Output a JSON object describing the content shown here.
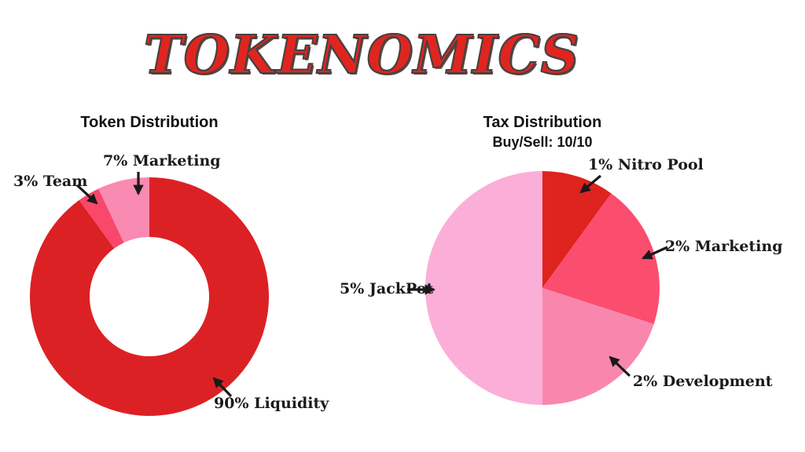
{
  "header": {
    "title": "TOKENOMICS"
  },
  "theme": {
    "background": "#ffffff",
    "title_fill": "#e0251f",
    "title_outline": "#4a4040",
    "text_color": "#111111",
    "arrow_color": "#1a1a1a"
  },
  "chart_data": [
    {
      "type": "pie",
      "variant": "donut",
      "title": "Token Distribution",
      "legend_position": "none",
      "label_style": "callout-arrows",
      "start_angle_deg": 0,
      "direction": "clockwise",
      "slices": [
        {
          "category": "Liquidity",
          "label": "90% Liquidity",
          "value_pct": 90,
          "color": "#dc2125"
        },
        {
          "category": "Team",
          "label": "3% Team",
          "value_pct": 3,
          "color": "#f9486c"
        },
        {
          "category": "Marketing",
          "label": "7% Marketing",
          "value_pct": 7,
          "color": "#f98ab2"
        }
      ]
    },
    {
      "type": "pie",
      "variant": "pie",
      "title": "Tax Distribution",
      "subtitle": "Buy/Sell: 10/10",
      "legend_position": "none",
      "label_style": "callout-arrows",
      "start_angle_deg": 0,
      "direction": "clockwise",
      "slices": [
        {
          "category": "Nitro Pool",
          "label": "1% Nitro Pool",
          "value_pct": 1,
          "color": "#df231f"
        },
        {
          "category": "Marketing",
          "label": "2% Marketing",
          "value_pct": 2,
          "color": "#fb4d6e"
        },
        {
          "category": "Development",
          "label": "2% Development",
          "value_pct": 2,
          "color": "#f987ad"
        },
        {
          "category": "JackPot",
          "label": "5% JackPot",
          "value_pct": 5,
          "color": "#fbaed7"
        }
      ]
    }
  ]
}
